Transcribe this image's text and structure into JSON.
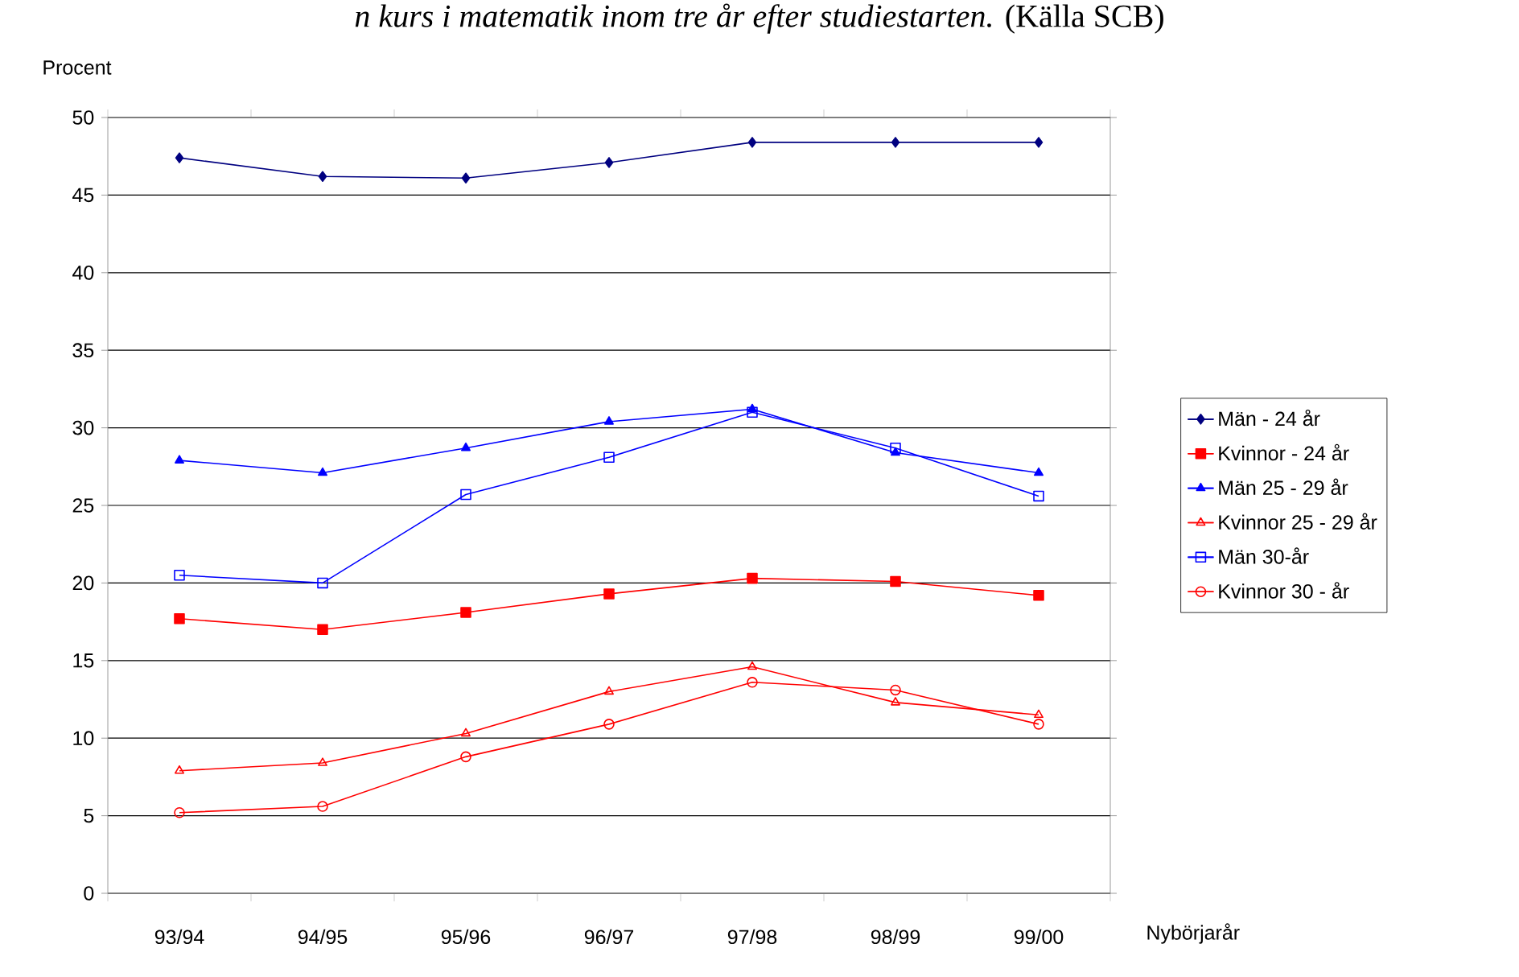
{
  "chart_data": {
    "type": "line",
    "title": "*n kurs i matematik inom tre år efter studiestarten.* (Källa SCB)",
    "ylabel": "Procent",
    "xlabel": "Nybörjarår",
    "categories": [
      "93/94",
      "94/95",
      "95/96",
      "96/97",
      "97/98",
      "98/99",
      "99/00"
    ],
    "series": [
      {
        "name": "Män  - 24 år",
        "color": "#000080",
        "marker": "diamond",
        "values": [
          47.4,
          46.2,
          46.1,
          47.1,
          48.4,
          48.4,
          48.4
        ]
      },
      {
        "name": "Kvinnor - 24 år",
        "color": "#ff0000",
        "marker": "square",
        "values": [
          17.7,
          17.0,
          18.1,
          19.3,
          20.3,
          20.1,
          19.2
        ]
      },
      {
        "name": "Män 25 - 29 år",
        "color": "#0000ff",
        "marker": "triangle",
        "values": [
          27.9,
          27.1,
          28.7,
          30.4,
          31.2,
          28.4,
          27.1
        ]
      },
      {
        "name": "Kvinnor 25 - 29 år",
        "color": "#ff0000",
        "marker": "triangle",
        "values": [
          7.9,
          8.4,
          10.3,
          13.0,
          14.6,
          12.3,
          11.5
        ]
      },
      {
        "name": "Män 30-år",
        "color": "#0000ff",
        "marker": "square",
        "values": [
          20.5,
          20.0,
          25.7,
          28.1,
          31.0,
          28.7,
          25.6
        ]
      },
      {
        "name": "Kvinnor 30 - år",
        "color": "#ff0000",
        "marker": "circle",
        "values": [
          5.2,
          5.6,
          8.8,
          10.9,
          13.6,
          13.1,
          10.9
        ]
      }
    ],
    "ylim": [
      0,
      50
    ],
    "yticks": [
      0,
      5,
      10,
      15,
      20,
      25,
      30,
      35,
      40,
      45,
      50
    ],
    "grid": "y",
    "legend": "right",
    "line_style": "solid"
  }
}
